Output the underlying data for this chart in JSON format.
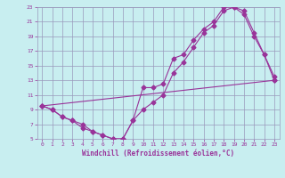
{
  "xlabel": "Windchill (Refroidissement éolien,°C)",
  "bg_color": "#c8eef0",
  "line_color": "#993399",
  "grid_color": "#9999bb",
  "xlim": [
    -0.5,
    23.5
  ],
  "ylim": [
    5,
    23
  ],
  "xticks": [
    0,
    1,
    2,
    3,
    4,
    5,
    6,
    7,
    8,
    9,
    10,
    11,
    12,
    13,
    14,
    15,
    16,
    17,
    18,
    19,
    20,
    21,
    22,
    23
  ],
  "yticks": [
    5,
    7,
    9,
    11,
    13,
    15,
    17,
    19,
    21,
    23
  ],
  "line1_x": [
    0,
    1,
    2,
    3,
    4,
    5,
    6,
    7,
    8,
    9,
    10,
    11,
    12,
    13,
    14,
    15,
    16,
    17,
    18,
    19,
    20,
    21,
    22,
    23
  ],
  "line1_y": [
    9.5,
    9.0,
    8.0,
    7.5,
    6.5,
    6.0,
    5.5,
    5.0,
    5.0,
    7.5,
    12.0,
    12.0,
    12.5,
    16.0,
    16.5,
    18.5,
    20.0,
    21.0,
    23.0,
    23.0,
    22.0,
    19.0,
    16.5,
    13.0
  ],
  "line2_x": [
    0,
    1,
    2,
    3,
    4,
    5,
    6,
    7,
    8,
    9,
    10,
    11,
    12,
    13,
    14,
    15,
    16,
    17,
    18,
    19,
    20,
    21,
    22,
    23
  ],
  "line2_y": [
    9.5,
    9.0,
    8.0,
    7.5,
    7.0,
    6.0,
    5.5,
    5.0,
    5.0,
    7.5,
    9.0,
    10.0,
    11.0,
    14.0,
    15.5,
    17.5,
    19.5,
    20.5,
    22.5,
    23.0,
    22.5,
    19.5,
    16.5,
    13.5
  ],
  "line3_x": [
    0,
    23
  ],
  "line3_y": [
    9.5,
    13.0
  ],
  "markersize": 2.5
}
